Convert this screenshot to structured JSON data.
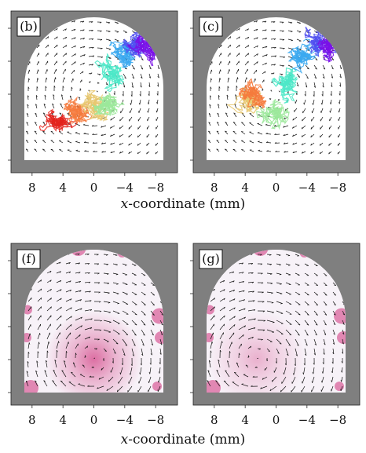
{
  "figure": {
    "xlabel_italic": "x",
    "xlabel_rest": "-coordinate (mm)",
    "x_ticks": [
      "8",
      "4",
      "0",
      "−4",
      "−8"
    ],
    "x_tick_values": [
      8,
      4,
      0,
      -4,
      -8
    ]
  },
  "colors": {
    "frame_gray": "#7f7f7f",
    "arrow": "#111111",
    "vorticity": "#d0307a",
    "trajectory_palette": [
      "#e3221c",
      "#f57a3c",
      "#e8c870",
      "#9be89a",
      "#4ce8c8",
      "#3aa8f0",
      "#5050f0",
      "#7a10e8"
    ]
  },
  "chart_data": [
    {
      "type": "scatter",
      "panel_label": "(b)",
      "description_of_marks": "particle trajectories over velocity quiver",
      "xlabel": "",
      "xlim": [
        9,
        -9
      ],
      "trajectory_clusters": [
        {
          "color_index": 0,
          "center_x": 4.5,
          "center_y": 0.35
        },
        {
          "color_index": 1,
          "center_x": 2.0,
          "center_y": 0.45
        },
        {
          "color_index": 2,
          "center_x": 0.0,
          "center_y": 0.5
        },
        {
          "color_index": 3,
          "center_x": -2.0,
          "center_y": 0.5
        },
        {
          "color_index": 4,
          "center_x": -2.5,
          "center_y": 0.75
        },
        {
          "color_index": 5,
          "center_x": -4.0,
          "center_y": 0.95
        },
        {
          "color_index": 6,
          "center_x": -5.5,
          "center_y": 1.05
        },
        {
          "color_index": 7,
          "center_x": -7.0,
          "center_y": 1.0
        }
      ]
    },
    {
      "type": "scatter",
      "panel_label": "(c)",
      "description_of_marks": "particle trajectories over velocity quiver",
      "xlabel": "x-coordinate (mm)",
      "xlim": [
        9,
        -9
      ],
      "trajectory_clusters": [
        {
          "color_index": 2,
          "center_x": 3.5,
          "center_y": 0.55
        },
        {
          "color_index": 1,
          "center_x": 3.0,
          "center_y": 0.6
        },
        {
          "color_index": 3,
          "center_x": 0.0,
          "center_y": 0.45
        },
        {
          "color_index": 4,
          "center_x": -1.5,
          "center_y": 0.7
        },
        {
          "color_index": 5,
          "center_x": -3.5,
          "center_y": 0.95
        },
        {
          "color_index": 6,
          "center_x": -5.5,
          "center_y": 1.1
        },
        {
          "color_index": 7,
          "center_x": -7.0,
          "center_y": 1.05
        }
      ]
    },
    {
      "type": "heatmap",
      "panel_label": "(f)",
      "description_of_marks": "velocity quiver over vorticity magnitude",
      "xlabel": "",
      "xlim": [
        9,
        -9
      ],
      "vortex_center_x": 0,
      "vortex_strength": 0.9
    },
    {
      "type": "heatmap",
      "panel_label": "(g)",
      "description_of_marks": "velocity quiver over vorticity magnitude",
      "xlabel": "x-coordinate (mm)",
      "xlim": [
        9,
        -9
      ],
      "vortex_center_x": 2.5,
      "vortex_strength": 0.45
    }
  ]
}
